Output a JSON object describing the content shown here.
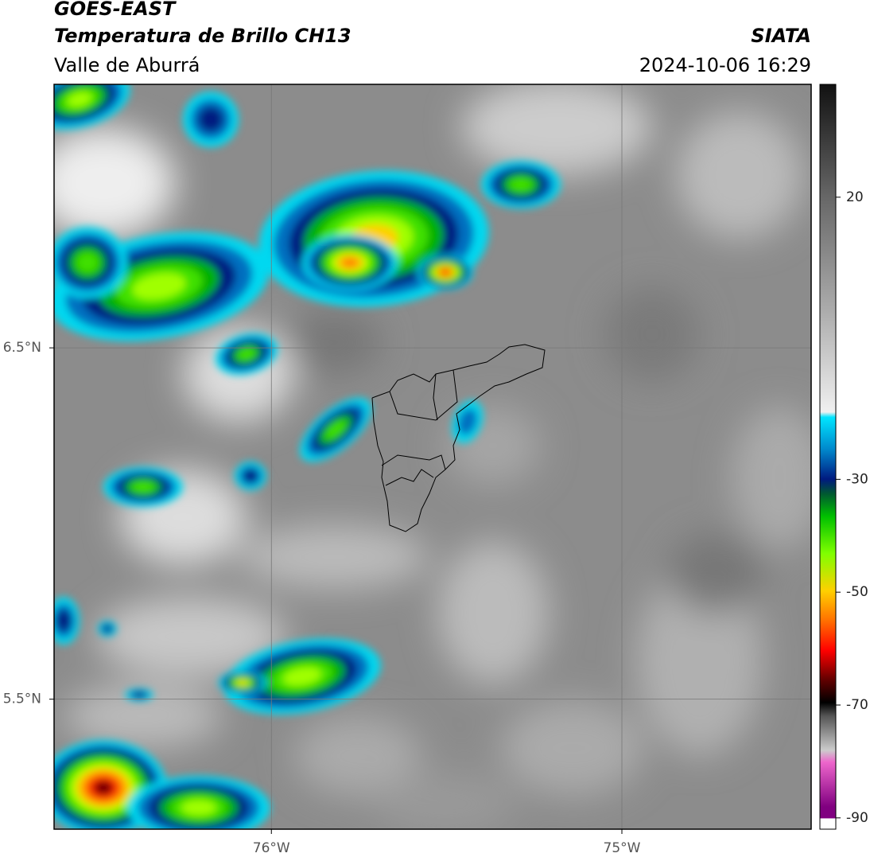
{
  "header": {
    "title": "GOES-EAST",
    "subtitle": "Temperatura de Brillo CH13",
    "region": "Valle de Aburrá",
    "source": "SIATA",
    "datetime": "2024-10-06 16:29"
  },
  "map": {
    "xlim": [
      -76.62,
      -74.46
    ],
    "ylim": [
      5.13,
      7.25
    ],
    "xticks": [
      {
        "value": -76,
        "label": "76°W"
      },
      {
        "value": -75,
        "label": "75°W"
      }
    ],
    "yticks": [
      {
        "value": 6.5,
        "label": "6.5°N"
      },
      {
        "value": 5.5,
        "label": "5.5°N"
      }
    ]
  },
  "colorbar": {
    "lim": [
      -92,
      40
    ],
    "ticks": [
      20,
      -30,
      -50,
      -70,
      -90
    ]
  }
}
